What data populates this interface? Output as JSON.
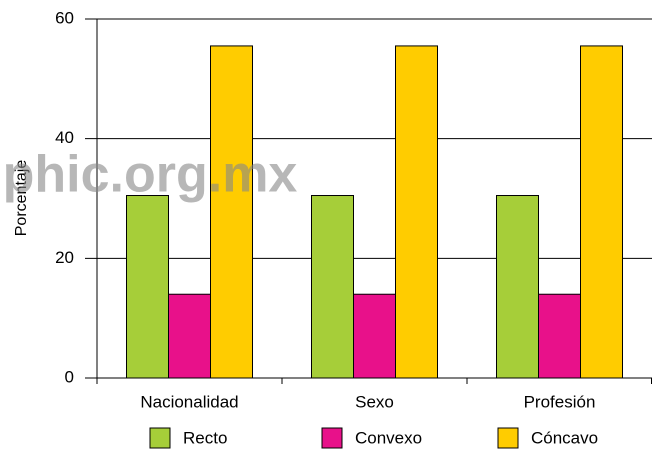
{
  "chart_data": {
    "type": "bar",
    "ylabel": "Porcentaje",
    "watermark": "phic.org.mx",
    "categories": [
      "Nacionalidad",
      "Sexo",
      "Profesión"
    ],
    "series": [
      {
        "name": "Recto",
        "color": "#a6ce39",
        "values": [
          30.5,
          30.5,
          30.5
        ]
      },
      {
        "name": "Convexo",
        "color": "#e8118a",
        "values": [
          14,
          14,
          14
        ]
      },
      {
        "name": "Cóncavo",
        "color": "#ffcc00",
        "values": [
          55.5,
          55.5,
          55.5
        ]
      }
    ],
    "ylim": [
      0,
      60
    ],
    "yticks": [
      0,
      20,
      40,
      60
    ],
    "grid": true,
    "legend": "bottom"
  }
}
